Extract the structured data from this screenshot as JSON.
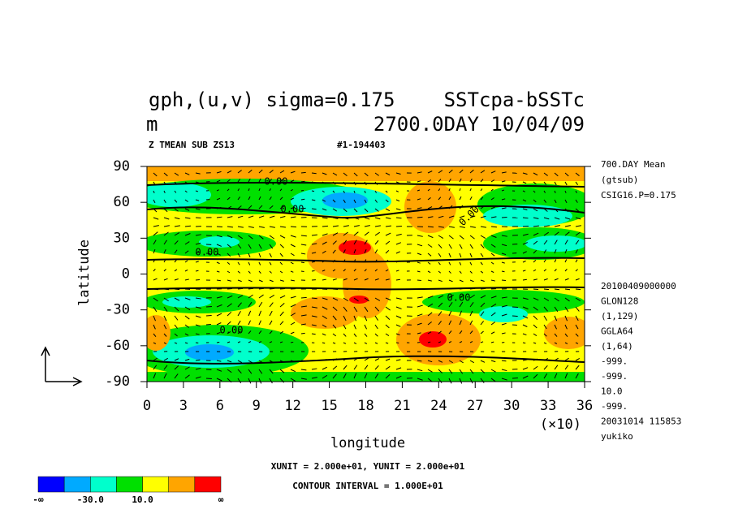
{
  "chart_data": {
    "type": "contour",
    "title_left": "gph,(u,v)  sigma=0.175",
    "title_right": "SSTcpa-bSSTc",
    "title_unit": "m",
    "title_time": "2700.0DAY 10/04/09",
    "subtitle_left": "Z TMEAN SUB ZS13",
    "subtitle_right": "#1-194403",
    "x_label": "longitude",
    "y_label": "latitude",
    "x_multiplier": "(×10)",
    "xlim": [
      0,
      36
    ],
    "ylim": [
      -90,
      90
    ],
    "xticks": [
      0,
      3,
      6,
      9,
      12,
      15,
      18,
      21,
      24,
      27,
      30,
      33,
      36
    ],
    "yticks": [
      90,
      60,
      30,
      0,
      -30,
      -60,
      -90
    ],
    "contour_labels": [
      "0.00",
      "0.00",
      "0.00",
      "0.00",
      "0.00",
      "0.00"
    ],
    "info": [
      "700.DAY Mean",
      "(gtsub)",
      "CSIG16.P=0.175"
    ],
    "info2": [
      "20100409000000",
      "GLON128",
      "(1,129)",
      "GGLA64",
      "(1,64)",
      "-999.",
      "-999.",
      "10.0",
      "-999.",
      "20031014 115853",
      "yukiko"
    ],
    "units_note": "XUNIT = 2.000e+01, YUNIT = 2.000e+01",
    "contour_interval": "CONTOUR INTERVAL = 1.000E+01",
    "colorbar": {
      "colors": [
        "#0000ff",
        "#00aaff",
        "#00ffcc",
        "#00e000",
        "#ffff00",
        "#ffa500",
        "#ff0000"
      ],
      "labels": [
        "-∞",
        "-30.0",
        "10.0",
        "∞"
      ]
    }
  }
}
